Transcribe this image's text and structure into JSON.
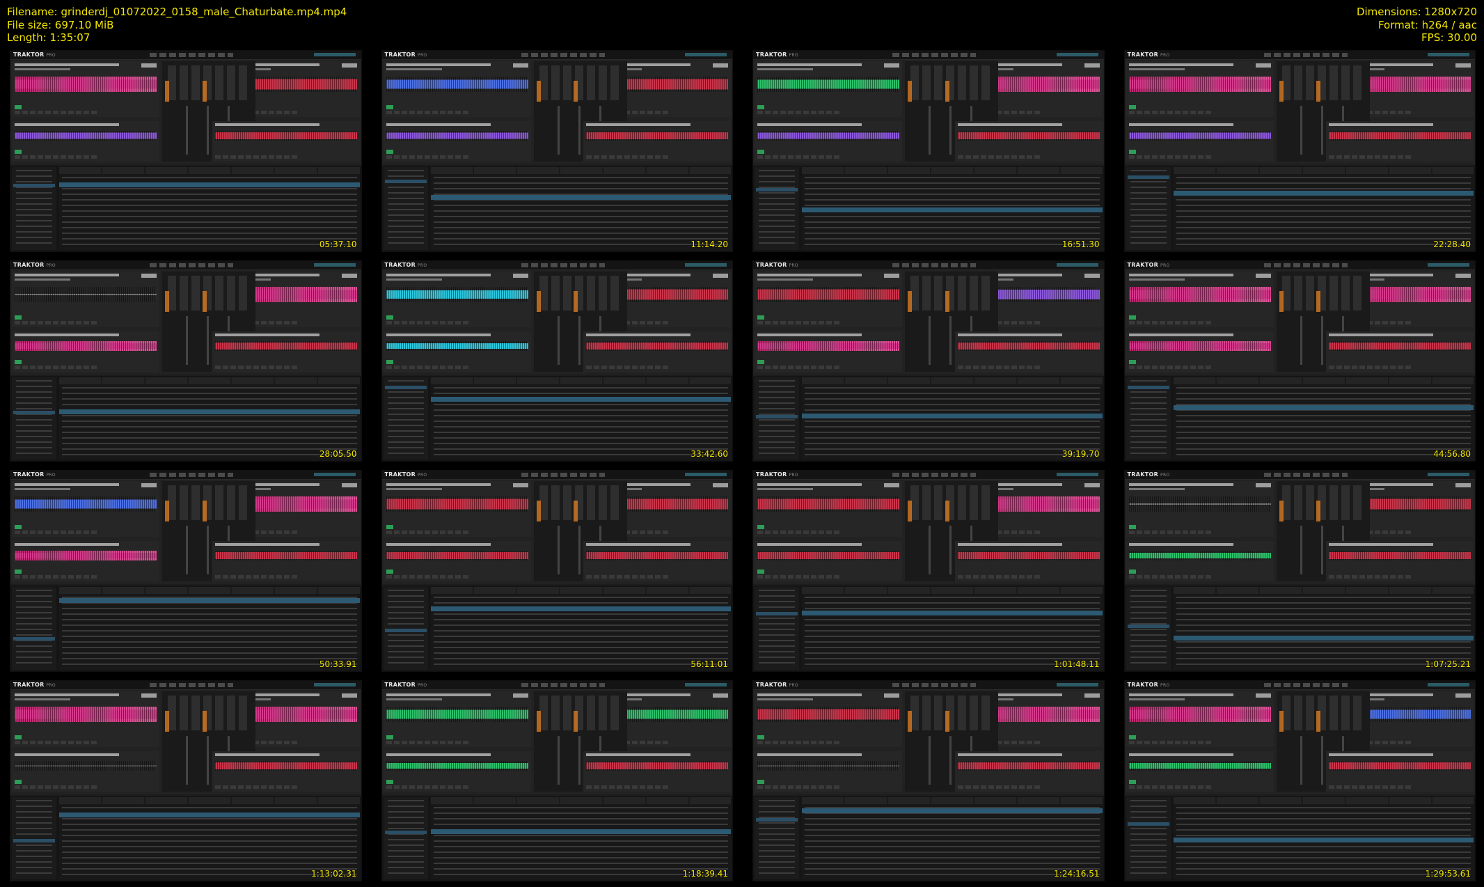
{
  "info": {
    "filename": "Filename: grinderdj_01072022_0158_male_Chaturbate.mp4.mp4",
    "filesize": "File size: 697.10 MiB",
    "length": "Length: 1:35:07",
    "dimensions": "Dimensions: 1280x720",
    "format": "Format: h264 / aac",
    "fps": "FPS: 30.00"
  },
  "app": {
    "name": "TRAKTOR",
    "edition": "PRO"
  },
  "thumbnails": [
    {
      "timestamp": "05:37.10",
      "waves": [
        "mag",
        "red",
        "violet",
        "red"
      ]
    },
    {
      "timestamp": "11:14.20",
      "waves": [
        "blue",
        "red",
        "violet",
        "red"
      ]
    },
    {
      "timestamp": "16:51.30",
      "waves": [
        "green",
        "mag",
        "violet",
        "red"
      ]
    },
    {
      "timestamp": "22:28.40",
      "waves": [
        "mag",
        "mag",
        "violet",
        "red"
      ]
    },
    {
      "timestamp": "28:05.50",
      "waves": [
        "flat",
        "mag",
        "mag",
        "red"
      ]
    },
    {
      "timestamp": "33:42.60",
      "waves": [
        "cyan",
        "red",
        "cyan",
        "red"
      ]
    },
    {
      "timestamp": "39:19.70",
      "waves": [
        "red",
        "violet",
        "mag",
        "red"
      ]
    },
    {
      "timestamp": "44:56.80",
      "waves": [
        "mag",
        "mag",
        "mag",
        "red"
      ]
    },
    {
      "timestamp": "50:33.91",
      "waves": [
        "blue",
        "mag",
        "mag",
        "red"
      ]
    },
    {
      "timestamp": "56:11.01",
      "waves": [
        "red",
        "red",
        "red",
        "red"
      ]
    },
    {
      "timestamp": "1:01:48.11",
      "waves": [
        "red",
        "mag",
        "red",
        "red"
      ]
    },
    {
      "timestamp": "1:07:25.21",
      "waves": [
        "flat",
        "red",
        "green",
        "red"
      ]
    },
    {
      "timestamp": "1:13:02.31",
      "waves": [
        "mag",
        "mag",
        "flat",
        "red"
      ]
    },
    {
      "timestamp": "1:18:39.41",
      "waves": [
        "green",
        "green",
        "green",
        "red"
      ]
    },
    {
      "timestamp": "1:24:16.51",
      "waves": [
        "red",
        "mag",
        "flat",
        "red"
      ]
    },
    {
      "timestamp": "1:29:53.61",
      "waves": [
        "mag",
        "blue",
        "green",
        "red"
      ]
    }
  ]
}
